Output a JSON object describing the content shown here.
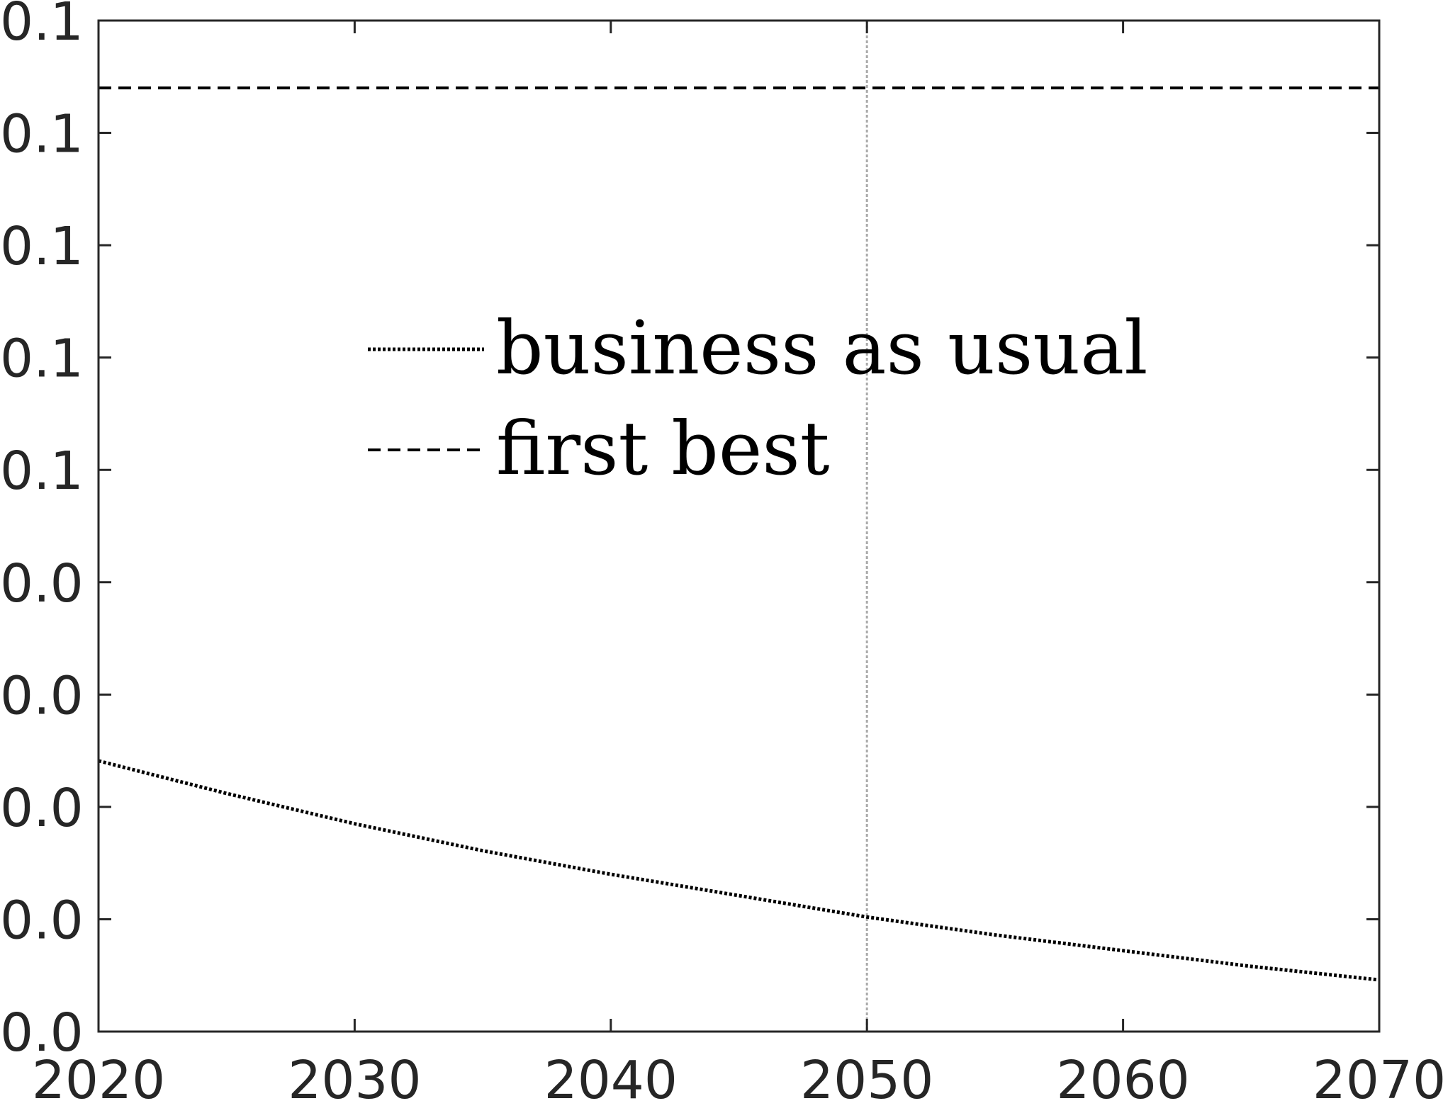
{
  "chart_data": {
    "type": "line",
    "title": "",
    "xlabel": "",
    "ylabel": "",
    "xlim": [
      2020,
      2070
    ],
    "ylim": [
      0,
      9
    ],
    "x_ticks": [
      {
        "value": 2020,
        "label": "2020"
      },
      {
        "value": 2030,
        "label": "2030"
      },
      {
        "value": 2040,
        "label": "2040"
      },
      {
        "value": 2050,
        "label": "2050"
      },
      {
        "value": 2060,
        "label": "2060"
      },
      {
        "value": 2070,
        "label": "2070"
      }
    ],
    "y_ticks": [
      {
        "value": 0,
        "label": "0.0"
      },
      {
        "value": 1,
        "label": "0.0"
      },
      {
        "value": 2,
        "label": "0.0"
      },
      {
        "value": 3,
        "label": "0.0"
      },
      {
        "value": 4,
        "label": "0.0"
      },
      {
        "value": 5,
        "label": "0.1"
      },
      {
        "value": 6,
        "label": "0.1"
      },
      {
        "value": 7,
        "label": "0.1"
      },
      {
        "value": 8,
        "label": "0.1"
      },
      {
        "value": 9,
        "label": "0.1"
      }
    ],
    "grid": false,
    "vertical_reference_line": {
      "x": 2050,
      "color": "#aaaaaa",
      "style": "dotted"
    },
    "legend": {
      "placement": "upper-center"
    },
    "series": [
      {
        "name": "business as usual",
        "style": "dotted",
        "color": "#000000",
        "x": [
          2020,
          2025,
          2030,
          2035,
          2040,
          2045,
          2050,
          2055,
          2060,
          2065,
          2070
        ],
        "y": [
          2.41,
          2.12,
          1.85,
          1.61,
          1.4,
          1.21,
          1.02,
          0.86,
          0.72,
          0.58,
          0.46
        ]
      },
      {
        "name": "first best",
        "style": "dashed",
        "color": "#000000",
        "x": [
          2020,
          2070
        ],
        "y": [
          8.4,
          8.4
        ]
      }
    ]
  }
}
